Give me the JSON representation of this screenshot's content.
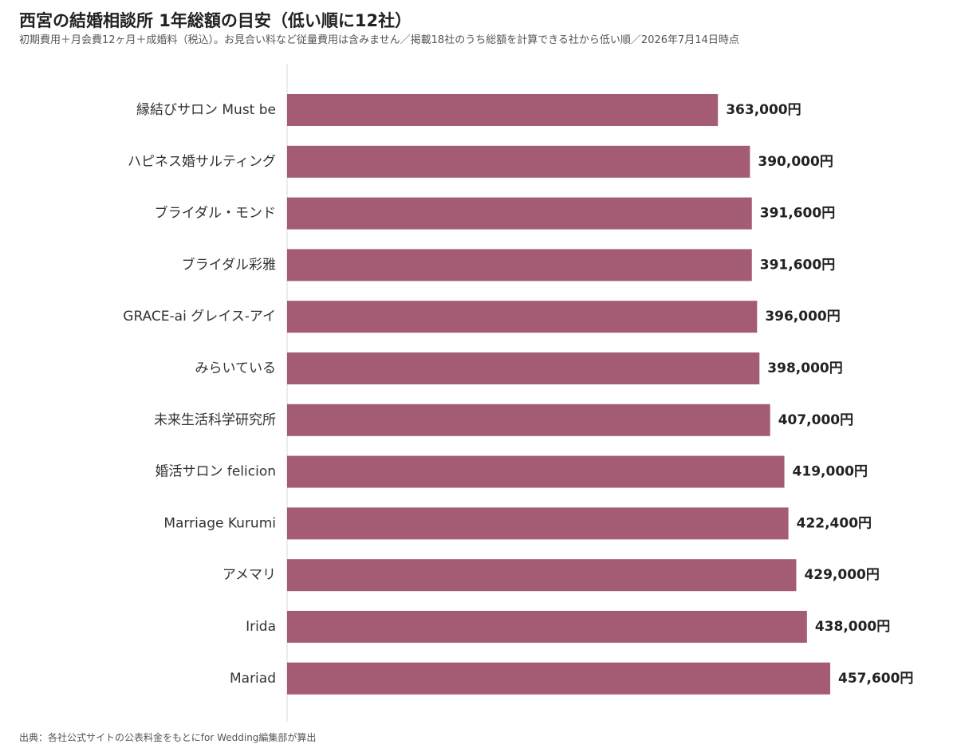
{
  "title": "西宮の結婚相談所 1年総額の目安（低い順に12社）",
  "subtitle": "初期費用＋月会費12ヶ月＋成婚料（税込）。お見合い料など従量費用は含みません／掲載18社のうち総額を計算できる社から低い順／2026年7月14日時点",
  "source": "出典：各社公式サイトの公表料金をもとにfor Wedding編集部が算出",
  "chart_data": {
    "type": "bar",
    "orientation": "horizontal",
    "categories": [
      "縁結びサロン Must be",
      "ハピネス婚サルティング",
      "ブライダル・モンド",
      "ブライダル彩雅",
      "GRACE-ai グレイス-アイ",
      "みらいている",
      "未来生活科学研究所",
      "婚活サロン felicion",
      "Marriage Kurumi",
      "アメマリ",
      "Irida",
      "Mariad"
    ],
    "values": [
      363000,
      390000,
      391600,
      391600,
      396000,
      398000,
      407000,
      419000,
      422400,
      429000,
      438000,
      457600
    ],
    "value_labels": [
      "363,000円",
      "390,000円",
      "391,600円",
      "391,600円",
      "396,000円",
      "398,000円",
      "407,000円",
      "419,000円",
      "422,400円",
      "429,000円",
      "438,000円",
      "457,600円"
    ],
    "unit": "円",
    "title": "西宮の結婚相談所 1年総額の目安（低い順に12社）",
    "xlabel": "",
    "ylabel": "",
    "xlim": [
      0,
      457600
    ],
    "grid": false,
    "legend": "none",
    "bar_color": "#a45c74"
  }
}
